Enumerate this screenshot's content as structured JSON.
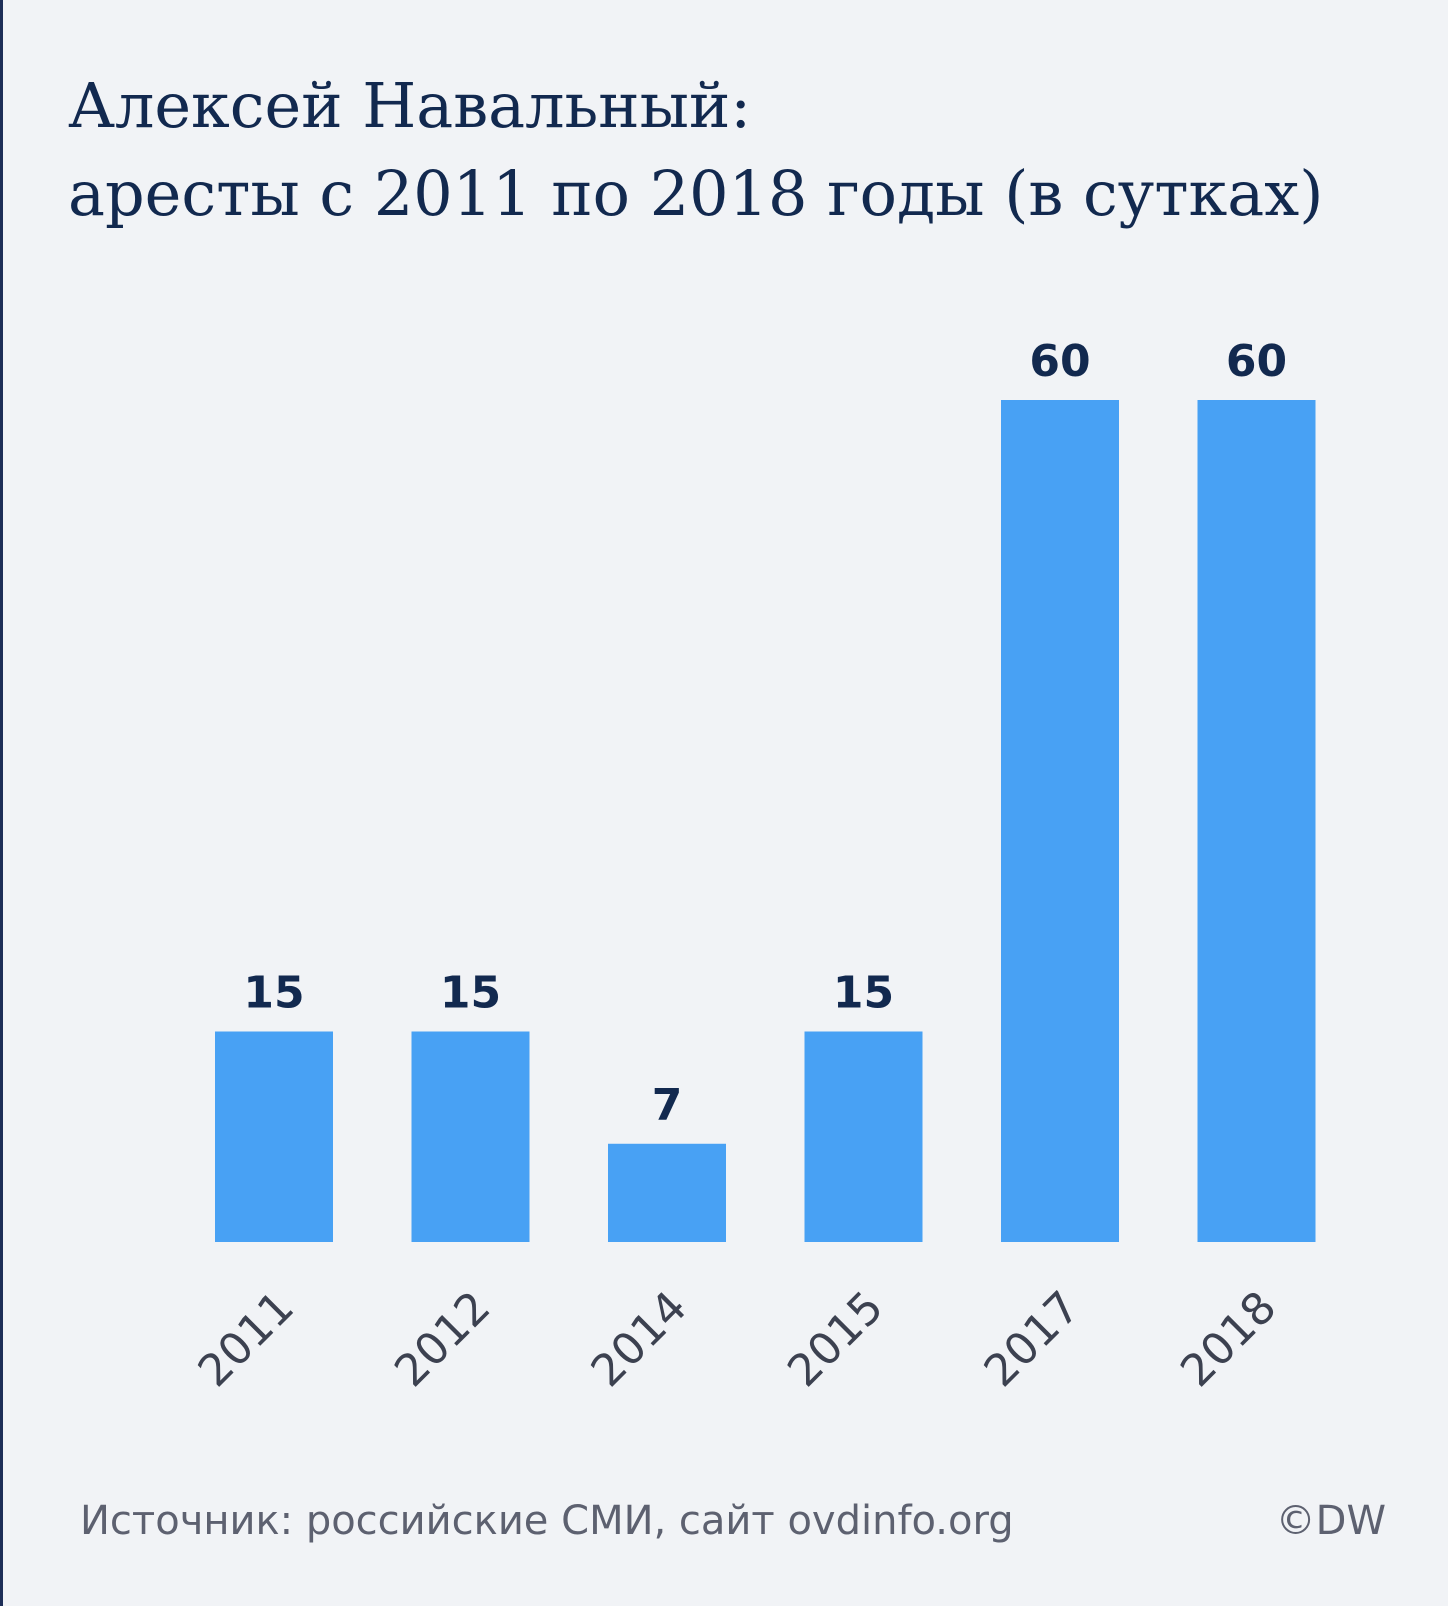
{
  "title_lines": [
    "Алексей Навальный:",
    "аресты с 2011 по 2018 годы (в сутках)"
  ],
  "footer": {
    "source": "Источник: российские СМИ, сайт ovdinfo.org",
    "credit": "©DW"
  },
  "colors": {
    "background": "#f1f3f6",
    "bar": "#48a1f4",
    "label": "#12294f"
  },
  "chart_data": {
    "type": "bar",
    "title": "Алексей Навальный: аресты с 2011 по 2018 годы (в сутках)",
    "categories": [
      "2011",
      "2012",
      "2014",
      "2015",
      "2017",
      "2018"
    ],
    "values": [
      15,
      15,
      7,
      15,
      60,
      60
    ],
    "data_labels": [
      "15",
      "15",
      "7",
      "15",
      "60",
      "60"
    ],
    "xlabel": "",
    "ylabel": "",
    "ylim": [
      0,
      60
    ],
    "grid": false,
    "legend": "none",
    "x_tick_rotation": "-45 degrees"
  }
}
